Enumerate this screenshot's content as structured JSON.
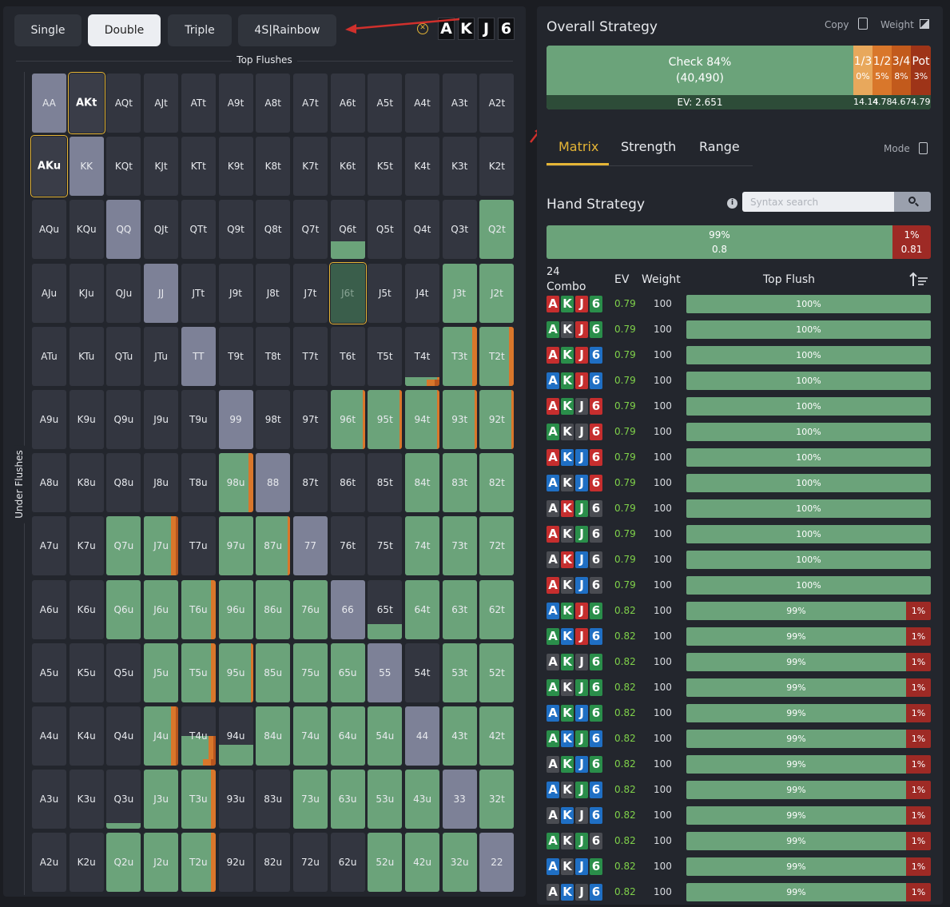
{
  "modes": [
    {
      "label": "Single",
      "active": false
    },
    {
      "label": "Double",
      "active": true
    },
    {
      "label": "Triple",
      "active": false
    },
    {
      "label": "4S|Rainbow",
      "active": false
    }
  ],
  "board": [
    "A",
    "K",
    "J",
    "6"
  ],
  "axes": {
    "top": "Top Flushes",
    "left": "Under Flushes"
  },
  "matrix_labels": [
    [
      "AA",
      "AKt",
      "AQt",
      "AJt",
      "ATt",
      "A9t",
      "A8t",
      "A7t",
      "A6t",
      "A5t",
      "A4t",
      "A3t",
      "A2t"
    ],
    [
      "AKu",
      "KK",
      "KQt",
      "KJt",
      "KTt",
      "K9t",
      "K8t",
      "K7t",
      "K6t",
      "K5t",
      "K4t",
      "K3t",
      "K2t"
    ],
    [
      "AQu",
      "KQu",
      "QQ",
      "QJt",
      "QTt",
      "Q9t",
      "Q8t",
      "Q7t",
      "Q6t",
      "Q5t",
      "Q4t",
      "Q3t",
      "Q2t"
    ],
    [
      "AJu",
      "KJu",
      "QJu",
      "JJ",
      "JTt",
      "J9t",
      "J8t",
      "J7t",
      "J6t",
      "J5t",
      "J4t",
      "J3t",
      "J2t"
    ],
    [
      "ATu",
      "KTu",
      "QTu",
      "JTu",
      "TT",
      "T9t",
      "T8t",
      "T7t",
      "T6t",
      "T5t",
      "T4t",
      "T3t",
      "T2t"
    ],
    [
      "A9u",
      "K9u",
      "Q9u",
      "J9u",
      "T9u",
      "99",
      "98t",
      "97t",
      "96t",
      "95t",
      "94t",
      "93t",
      "92t"
    ],
    [
      "A8u",
      "K8u",
      "Q8u",
      "J8u",
      "T8u",
      "98u",
      "88",
      "87t",
      "86t",
      "85t",
      "84t",
      "83t",
      "82t"
    ],
    [
      "A7u",
      "K7u",
      "Q7u",
      "J7u",
      "T7u",
      "97u",
      "87u",
      "77",
      "76t",
      "75t",
      "74t",
      "73t",
      "72t"
    ],
    [
      "A6u",
      "K6u",
      "Q6u",
      "J6u",
      "T6u",
      "96u",
      "86u",
      "76u",
      "66",
      "65t",
      "64t",
      "63t",
      "62t"
    ],
    [
      "A5u",
      "K5u",
      "Q5u",
      "J5u",
      "T5u",
      "95u",
      "85u",
      "75u",
      "65u",
      "55",
      "54t",
      "53t",
      "52t"
    ],
    [
      "A4u",
      "K4u",
      "Q4u",
      "J4u",
      "T4u",
      "94u",
      "84u",
      "74u",
      "64u",
      "54u",
      "44",
      "43t",
      "42t"
    ],
    [
      "A3u",
      "K3u",
      "Q3u",
      "J3u",
      "T3u",
      "93u",
      "83u",
      "73u",
      "63u",
      "53u",
      "43u",
      "33",
      "32t"
    ],
    [
      "A2u",
      "K2u",
      "Q2u",
      "J2u",
      "T2u",
      "92u",
      "82u",
      "72u",
      "62u",
      "52u",
      "42u",
      "32u",
      "22"
    ]
  ],
  "overall": {
    "title": "Overall Strategy",
    "copy_label": "Copy",
    "weight_label": "Weight",
    "check_label": "Check 84%",
    "check_count": "(40,490)",
    "check_fraction": 0.84,
    "ev": "EV: 2.651",
    "bets": [
      {
        "name": "1/3",
        "pct": "0%",
        "ev": "14.14",
        "color": "#e8a85c"
      },
      {
        "name": "1/2",
        "pct": "5%",
        "ev": "4.78",
        "color": "#d9772b"
      },
      {
        "name": "3/4",
        "pct": "8%",
        "ev": "4.67",
        "color": "#c25a1c"
      },
      {
        "name": "Pot",
        "pct": "3%",
        "ev": "4.79",
        "color": "#9e3418"
      }
    ]
  },
  "tabs": [
    "Matrix",
    "Strength",
    "Range"
  ],
  "mode_label": "Mode",
  "hand": {
    "title": "Hand Strategy",
    "search_placeholder": "Syntax search",
    "green_pct": "99%",
    "green_val": "0.8",
    "green_fraction": 0.99,
    "red_pct": "1%",
    "red_val": "0.81"
  },
  "table": {
    "count": "24",
    "headers": {
      "combo": "Combo",
      "ev": "EV",
      "weight": "Weight",
      "flush": "Top Flush"
    },
    "rows": [
      {
        "suits": [
          "h",
          "cl",
          "h",
          "cl"
        ],
        "ev": "0.79",
        "weight": "100",
        "bar": "100%",
        "red": ""
      },
      {
        "suits": [
          "cl",
          "s",
          "h",
          "cl"
        ],
        "ev": "0.79",
        "weight": "100",
        "bar": "100%",
        "red": ""
      },
      {
        "suits": [
          "h",
          "cl",
          "h",
          "d"
        ],
        "ev": "0.79",
        "weight": "100",
        "bar": "100%",
        "red": ""
      },
      {
        "suits": [
          "d",
          "cl",
          "h",
          "d"
        ],
        "ev": "0.79",
        "weight": "100",
        "bar": "100%",
        "red": ""
      },
      {
        "suits": [
          "h",
          "cl",
          "s",
          "h"
        ],
        "ev": "0.79",
        "weight": "100",
        "bar": "100%",
        "red": ""
      },
      {
        "suits": [
          "cl",
          "s",
          "s",
          "h"
        ],
        "ev": "0.79",
        "weight": "100",
        "bar": "100%",
        "red": ""
      },
      {
        "suits": [
          "h",
          "d",
          "d",
          "h"
        ],
        "ev": "0.79",
        "weight": "100",
        "bar": "100%",
        "red": ""
      },
      {
        "suits": [
          "d",
          "s",
          "d",
          "h"
        ],
        "ev": "0.79",
        "weight": "100",
        "bar": "100%",
        "red": ""
      },
      {
        "suits": [
          "s",
          "h",
          "cl",
          "s"
        ],
        "ev": "0.79",
        "weight": "100",
        "bar": "100%",
        "red": ""
      },
      {
        "suits": [
          "h",
          "s",
          "cl",
          "s"
        ],
        "ev": "0.79",
        "weight": "100",
        "bar": "100%",
        "red": ""
      },
      {
        "suits": [
          "s",
          "h",
          "d",
          "s"
        ],
        "ev": "0.79",
        "weight": "100",
        "bar": "100%",
        "red": ""
      },
      {
        "suits": [
          "h",
          "s",
          "d",
          "s"
        ],
        "ev": "0.79",
        "weight": "100",
        "bar": "100%",
        "red": ""
      },
      {
        "suits": [
          "d",
          "cl",
          "h",
          "cl"
        ],
        "ev": "0.82",
        "weight": "100",
        "bar": "99%",
        "red": "1%"
      },
      {
        "suits": [
          "cl",
          "d",
          "h",
          "d"
        ],
        "ev": "0.82",
        "weight": "100",
        "bar": "99%",
        "red": "1%"
      },
      {
        "suits": [
          "s",
          "cl",
          "s",
          "cl"
        ],
        "ev": "0.82",
        "weight": "100",
        "bar": "99%",
        "red": "1%"
      },
      {
        "suits": [
          "cl",
          "s",
          "cl",
          "cl"
        ],
        "ev": "0.82",
        "weight": "100",
        "bar": "99%",
        "red": "1%"
      },
      {
        "suits": [
          "d",
          "cl",
          "d",
          "cl"
        ],
        "ev": "0.82",
        "weight": "100",
        "bar": "99%",
        "red": "1%"
      },
      {
        "suits": [
          "cl",
          "d",
          "cl",
          "d"
        ],
        "ev": "0.82",
        "weight": "100",
        "bar": "99%",
        "red": "1%"
      },
      {
        "suits": [
          "s",
          "cl",
          "d",
          "cl"
        ],
        "ev": "0.82",
        "weight": "100",
        "bar": "99%",
        "red": "1%"
      },
      {
        "suits": [
          "d",
          "s",
          "cl",
          "d"
        ],
        "ev": "0.82",
        "weight": "100",
        "bar": "99%",
        "red": "1%"
      },
      {
        "suits": [
          "s",
          "d",
          "s",
          "d"
        ],
        "ev": "0.82",
        "weight": "100",
        "bar": "99%",
        "red": "1%"
      },
      {
        "suits": [
          "cl",
          "s",
          "cl",
          "s"
        ],
        "ev": "0.82",
        "weight": "100",
        "bar": "99%",
        "red": "1%"
      },
      {
        "suits": [
          "d",
          "s",
          "d",
          "cl"
        ],
        "ev": "0.82",
        "weight": "100",
        "bar": "99%",
        "red": "1%"
      },
      {
        "suits": [
          "s",
          "d",
          "s",
          "d"
        ],
        "ev": "0.82",
        "weight": "100",
        "bar": "99%",
        "red": "1%"
      }
    ]
  }
}
